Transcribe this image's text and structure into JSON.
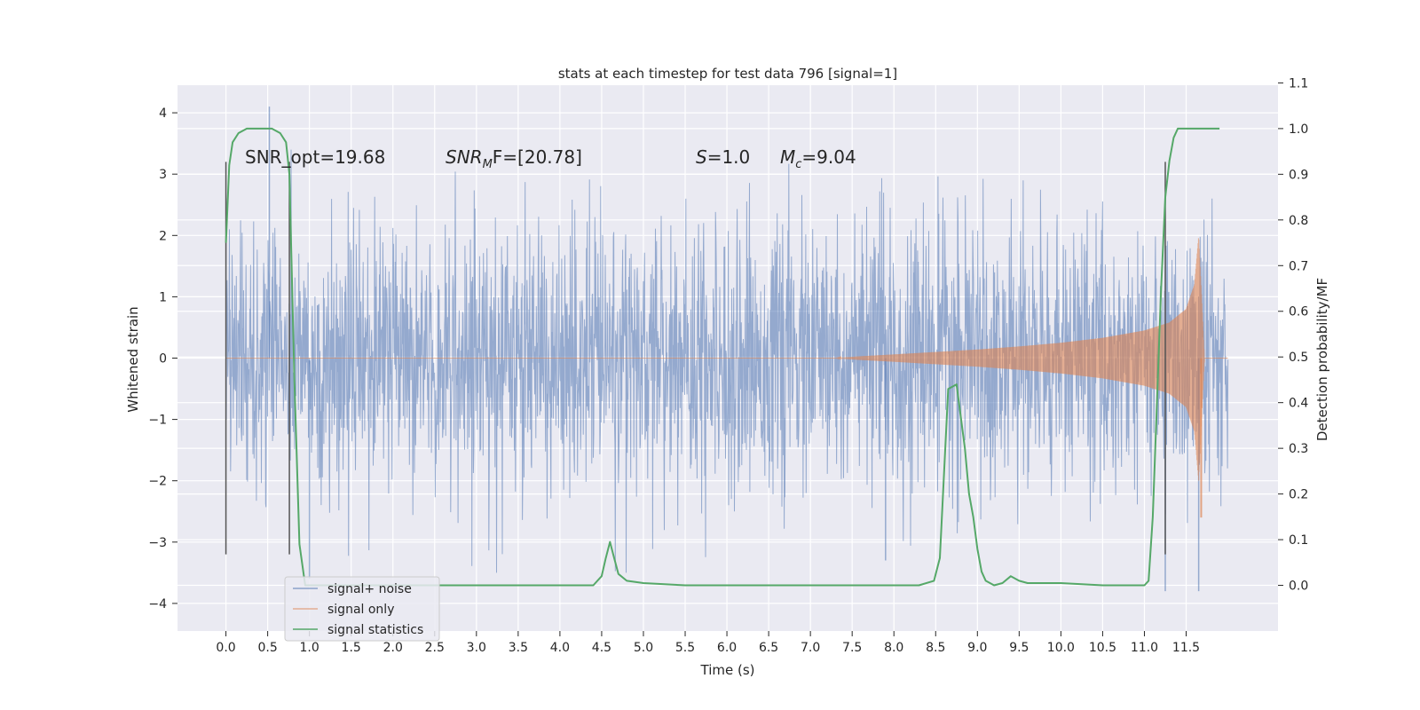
{
  "chart_data": {
    "type": "line",
    "title": "stats at each timestep for test data 796 [signal=1]",
    "xlabel": "Time (s)",
    "ylabel": "Whitened strain",
    "y2label": "Detection probability/MF",
    "xlim": [
      -0.58,
      12.6
    ],
    "ylim": [
      -4.45,
      4.45
    ],
    "y2lim": [
      -0.1,
      1.095
    ],
    "x_ticks": [
      0.0,
      0.5,
      1.0,
      1.5,
      2.0,
      2.5,
      3.0,
      3.5,
      4.0,
      4.5,
      5.0,
      5.5,
      6.0,
      6.5,
      7.0,
      7.5,
      8.0,
      8.5,
      9.0,
      9.5,
      10.0,
      10.5,
      11.0,
      11.5
    ],
    "x_tick_labels": [
      "0.0",
      "0.5",
      "1.0",
      "1.5",
      "2.0",
      "2.5",
      "3.0",
      "3.5",
      "4.0",
      "4.5",
      "5.0",
      "5.5",
      "6.0",
      "6.5",
      "7.0",
      "7.5",
      "8.0",
      "8.5",
      "9.0",
      "9.5",
      "10.0",
      "10.5",
      "11.0",
      "11.5"
    ],
    "y_ticks": [
      4,
      3,
      2,
      1,
      0,
      -1,
      -2,
      -3,
      -4
    ],
    "y_tick_labels": [
      "4",
      "3",
      "2",
      "1",
      "0",
      "−1",
      "−2",
      "−3",
      "−4"
    ],
    "y2_ticks": [
      1.1,
      1.0,
      0.9,
      0.8,
      0.7,
      0.6,
      0.5,
      0.4,
      0.3,
      0.2,
      0.1,
      0.0
    ],
    "y2_tick_labels": [
      "1.1",
      "1.0",
      "0.9",
      "0.8",
      "0.7",
      "0.6",
      "0.5",
      "0.4",
      "0.3",
      "0.2",
      "0.1",
      "0.0"
    ],
    "grid": true,
    "legend_position": "bottom-left",
    "annotations": {
      "snr_opt": "SNR_opt=19.68",
      "snr_mf_main": "SNR",
      "snr_mf_sub": "M",
      "snr_mf_rest": "F=[20.78]",
      "s_main": "S",
      "s_rest": "=1.0",
      "mc_main": "M",
      "mc_sub": "c",
      "mc_rest": "=9.04"
    },
    "vlines": {
      "x": [
        0.0,
        0.76,
        11.25
      ],
      "y_range": [
        -3.2,
        3.2
      ]
    },
    "series": [
      {
        "name": "signal+ noise",
        "color": "#4c72b0",
        "kind": "noise",
        "x_range": [
          0.0,
          12.0
        ],
        "envelope_sigma": 1.0,
        "approx_extremes": [
          4.1,
          -3.8
        ]
      },
      {
        "name": "signal only",
        "color": "#dd8452",
        "kind": "chirp",
        "envelope": {
          "x": [
            7.3,
            7.6,
            8.0,
            8.5,
            9.0,
            9.5,
            10.0,
            10.5,
            11.0,
            11.3,
            11.5,
            11.6,
            11.65,
            11.72
          ],
          "amp": [
            0.0,
            0.03,
            0.06,
            0.1,
            0.14,
            0.19,
            0.25,
            0.33,
            0.45,
            0.58,
            0.8,
            1.2,
            2.0,
            0.0
          ]
        },
        "min_value": -2.6
      },
      {
        "name": "signal statistics",
        "color": "#55a868",
        "axis": "right",
        "x": [
          0.0,
          0.04,
          0.08,
          0.15,
          0.25,
          0.4,
          0.55,
          0.65,
          0.72,
          0.76,
          0.82,
          0.88,
          0.95,
          1.0,
          1.5,
          2.0,
          3.0,
          4.0,
          4.4,
          4.5,
          4.55,
          4.6,
          4.65,
          4.7,
          4.8,
          5.0,
          5.5,
          6.0,
          6.5,
          7.0,
          7.5,
          8.0,
          8.3,
          8.48,
          8.55,
          8.65,
          8.75,
          8.85,
          8.9,
          8.95,
          9.0,
          9.05,
          9.1,
          9.2,
          9.3,
          9.4,
          9.5,
          9.6,
          9.7,
          10.0,
          10.5,
          11.0,
          11.05,
          11.1,
          11.15,
          11.2,
          11.25,
          11.3,
          11.35,
          11.4,
          11.5,
          11.6,
          11.7,
          11.9
        ],
        "y": [
          0.75,
          0.92,
          0.97,
          0.99,
          1.0,
          1.0,
          1.0,
          0.99,
          0.97,
          0.9,
          0.45,
          0.09,
          0.0,
          0.0,
          0.0,
          0.0,
          0.0,
          0.0,
          0.0,
          0.02,
          0.06,
          0.095,
          0.06,
          0.025,
          0.01,
          0.005,
          0.0,
          0.0,
          0.0,
          0.0,
          0.0,
          0.0,
          0.0,
          0.01,
          0.06,
          0.43,
          0.44,
          0.3,
          0.2,
          0.15,
          0.08,
          0.03,
          0.01,
          0.0,
          0.005,
          0.02,
          0.01,
          0.005,
          0.005,
          0.005,
          0.0,
          0.0,
          0.01,
          0.15,
          0.4,
          0.65,
          0.85,
          0.93,
          0.98,
          1.0,
          1.0,
          1.0,
          1.0,
          1.0
        ]
      }
    ]
  }
}
